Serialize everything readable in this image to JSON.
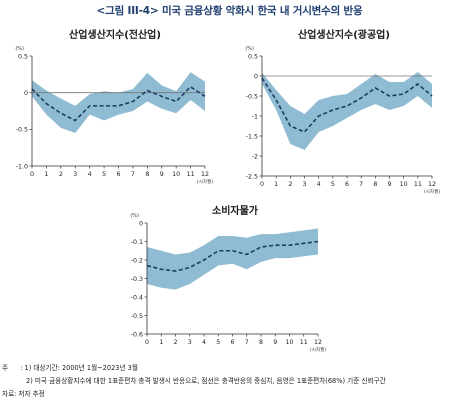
{
  "figure_title": "<그림 III-4> 미국 금융상황 악화시 한국 내 거시변수의 반응",
  "notes": {
    "label_note": "주",
    "note1": ": 1) 대상기간: 2000년 1월~2023년 3월",
    "note2": "2) 미국 금융상황지수에 대한 1표준편차 충격 발생시 반응으로, 점선은 충격반응의 중심치, 음영은 1표준편차(68%) 기준 신뢰구간",
    "source": "자료: 저자 추정"
  },
  "colors": {
    "band": "#8fbcd2",
    "center_line": "#1f3a64",
    "zero_line": "#777777",
    "axis": "#333333"
  },
  "chart_data": [
    {
      "type": "area",
      "title": "산업생산지수(전산업)",
      "unit_label": "(%)",
      "x_unit_label": "(시차월)",
      "x": [
        0,
        1,
        2,
        3,
        4,
        5,
        6,
        7,
        8,
        9,
        10,
        11,
        12
      ],
      "ylim": [
        -1.0,
        0.5
      ],
      "yticks": [
        0.5,
        0,
        -0.5,
        -1.0
      ],
      "ytick_labels": [
        "0.5",
        "0",
        "-0.5",
        "-1.0"
      ],
      "series": [
        {
          "role": "center",
          "values": [
            0.05,
            -0.15,
            -0.28,
            -0.38,
            -0.18,
            -0.18,
            -0.18,
            -0.12,
            0.03,
            -0.05,
            -0.12,
            0.08,
            -0.05
          ]
        },
        {
          "role": "upper",
          "values": [
            0.17,
            0.03,
            -0.08,
            -0.18,
            -0.02,
            0.02,
            0.0,
            0.05,
            0.27,
            0.1,
            0.02,
            0.28,
            0.15
          ]
        },
        {
          "role": "lower",
          "values": [
            -0.05,
            -0.3,
            -0.48,
            -0.55,
            -0.3,
            -0.38,
            -0.3,
            -0.25,
            -0.12,
            -0.22,
            -0.28,
            -0.1,
            -0.25
          ]
        }
      ]
    },
    {
      "type": "area",
      "title": "산업생산지수(광공업)",
      "unit_label": "(%)",
      "x_unit_label": "(시차월)",
      "x": [
        0,
        1,
        2,
        3,
        4,
        5,
        6,
        7,
        8,
        9,
        10,
        11,
        12
      ],
      "ylim": [
        -2.5,
        0.5
      ],
      "yticks": [
        0.5,
        0,
        -0.5,
        -1.0,
        -1.5,
        -2.0,
        -2.5
      ],
      "ytick_labels": [
        "0.5",
        "0",
        "-0.5",
        "-1",
        "-1.5",
        "-2",
        "-2.5"
      ],
      "series": [
        {
          "role": "center",
          "values": [
            -0.05,
            -0.6,
            -1.25,
            -1.4,
            -1.0,
            -0.85,
            -0.75,
            -0.55,
            -0.3,
            -0.5,
            -0.45,
            -0.2,
            -0.5
          ]
        },
        {
          "role": "upper",
          "values": [
            0.08,
            -0.35,
            -0.75,
            -0.95,
            -0.6,
            -0.5,
            -0.45,
            -0.2,
            0.05,
            -0.15,
            -0.15,
            0.1,
            -0.2
          ]
        },
        {
          "role": "lower",
          "values": [
            -0.2,
            -0.85,
            -1.7,
            -1.85,
            -1.4,
            -1.25,
            -1.05,
            -0.85,
            -0.7,
            -0.85,
            -0.75,
            -0.5,
            -0.8
          ]
        }
      ]
    },
    {
      "type": "area",
      "title": "소비자물가",
      "unit_label": "(%)",
      "x_unit_label": "(시차월)",
      "x": [
        0,
        1,
        2,
        3,
        4,
        5,
        6,
        7,
        8,
        9,
        10,
        11,
        12
      ],
      "ylim": [
        -0.6,
        0.0
      ],
      "yticks": [
        0,
        -0.1,
        -0.2,
        -0.3,
        -0.4,
        -0.5,
        -0.6
      ],
      "ytick_labels": [
        "0",
        "-0.1",
        "-0.2",
        "-0.3",
        "-0.4",
        "-0.5",
        "-0.6"
      ],
      "series": [
        {
          "role": "center",
          "values": [
            -0.23,
            -0.25,
            -0.26,
            -0.24,
            -0.2,
            -0.15,
            -0.15,
            -0.17,
            -0.13,
            -0.12,
            -0.12,
            -0.11,
            -0.1
          ]
        },
        {
          "role": "upper",
          "values": [
            -0.13,
            -0.15,
            -0.17,
            -0.16,
            -0.12,
            -0.07,
            -0.07,
            -0.08,
            -0.06,
            -0.06,
            -0.05,
            -0.04,
            -0.03
          ]
        },
        {
          "role": "lower",
          "values": [
            -0.33,
            -0.35,
            -0.36,
            -0.33,
            -0.28,
            -0.23,
            -0.22,
            -0.25,
            -0.21,
            -0.19,
            -0.19,
            -0.18,
            -0.17
          ]
        }
      ]
    }
  ]
}
